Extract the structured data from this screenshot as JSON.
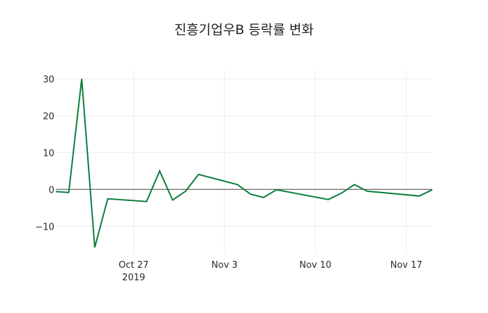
{
  "chart_data": {
    "type": "line",
    "title": "진흥기업우B 등락률 변화",
    "xlabel": "",
    "ylabel": "",
    "x": [
      "2019-10-21",
      "2019-10-22",
      "2019-10-23",
      "2019-10-24",
      "2019-10-25",
      "2019-10-28",
      "2019-10-29",
      "2019-10-30",
      "2019-10-31",
      "2019-11-01",
      "2019-11-04",
      "2019-11-05",
      "2019-11-06",
      "2019-11-07",
      "2019-11-11",
      "2019-11-12",
      "2019-11-13",
      "2019-11-14",
      "2019-11-18",
      "2019-11-19"
    ],
    "series": [
      {
        "name": "등락률",
        "color": "#0a7e3c",
        "values": [
          -0.6,
          -0.85,
          30.0,
          -15.75,
          -2.55,
          -3.3,
          5.0,
          -2.9,
          -0.5,
          4.05,
          1.3,
          -1.3,
          -2.2,
          -0.1,
          -2.75,
          -1.05,
          1.3,
          -0.5,
          -1.8,
          -0.1
        ]
      }
    ],
    "ylim": [
      -17.5,
      32.5
    ],
    "xlim": [
      "2019-10-21",
      "2019-11-19"
    ],
    "yticks": [
      30,
      20,
      10,
      0,
      -10
    ],
    "ytick_labels": [
      "30",
      "20",
      "10",
      "0",
      "−10"
    ],
    "xticks": [
      "2019-10-27",
      "2019-11-03",
      "2019-11-10",
      "2019-11-17"
    ],
    "xtick_labels": [
      "Oct 27",
      "Nov 3",
      "Nov 10",
      "Nov 17"
    ],
    "xtick_sublabel": "2019",
    "grid": true,
    "zero_line": true,
    "legend": false
  }
}
